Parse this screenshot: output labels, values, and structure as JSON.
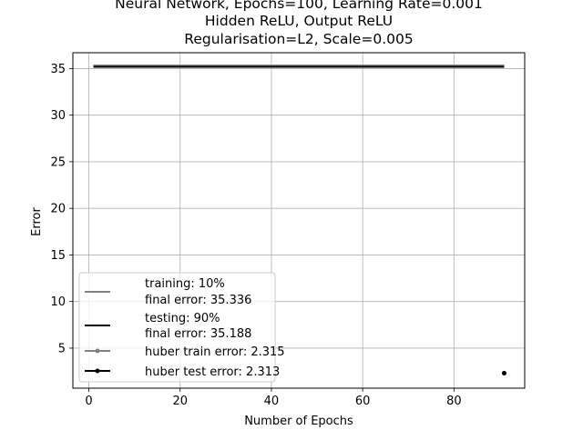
{
  "chart_data": {
    "type": "line",
    "title_lines": [
      "Neural Network, Epochs=100, Learning Rate=0.001",
      "Hidden ReLU, Output ReLU",
      "Regularisation=L2, Scale=0.005"
    ],
    "xlabel": "Number of Epochs",
    "ylabel": "Error",
    "xlim": [
      -3.5,
      95.5
    ],
    "ylim": [
      0.7,
      36.7
    ],
    "xticks": [
      0,
      20,
      40,
      60,
      80
    ],
    "yticks": [
      5,
      10,
      15,
      20,
      25,
      30,
      35
    ],
    "grid": true,
    "legend_position": "lower-left",
    "series": [
      {
        "name": "training: 10%\nfinal error: 35.336",
        "color": "#808080",
        "style": "line",
        "x": [
          1,
          91
        ],
        "y": [
          35.336,
          35.336
        ]
      },
      {
        "name": "testing: 90%\nfinal error: 35.188",
        "color": "#000000",
        "style": "line",
        "x": [
          1,
          91
        ],
        "y": [
          35.188,
          35.188
        ]
      },
      {
        "name": "huber train error: 2.315",
        "color": "#808080",
        "style": "marker",
        "x": [
          91
        ],
        "y": [
          2.315
        ]
      },
      {
        "name": "huber test error: 2.313",
        "color": "#000000",
        "style": "marker",
        "x": [
          91
        ],
        "y": [
          2.313
        ]
      }
    ]
  }
}
